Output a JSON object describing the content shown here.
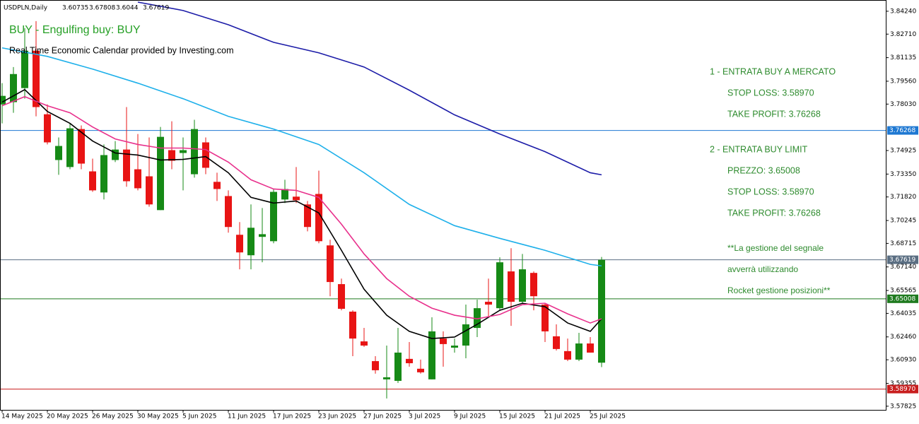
{
  "chart_data": {
    "type": "candlestick",
    "symbol": "USDPLN,Daily",
    "signal": "BUY - Engulfing buy: BUY",
    "credit": "Real Time Economic Calendar provided by Investing.com",
    "notes": [
      "1 - ENTRATA BUY A MERCATO",
      "STOP LOSS: 3.58970",
      "TAKE PROFIT: 3.76268",
      "2 - ENTRATA BUY LIMIT",
      "PREZZO: 3.65008",
      "STOP LOSS: 3.58970",
      "TAKE PROFIT: 3.76268",
      "**La gestione del segnale",
      "avverrà utilizzando",
      "Rocket gestione posizioni**"
    ],
    "categories": [
      "14 May 2025",
      null,
      null,
      null,
      "20 May 2025",
      null,
      null,
      null,
      "26 May 2025",
      null,
      null,
      null,
      "30 May 2025",
      null,
      null,
      null,
      "5 Jun 2025",
      null,
      null,
      null,
      "11 Jun 2025",
      null,
      null,
      null,
      "17 Jun 2025",
      null,
      null,
      null,
      "23 Jun 2025",
      null,
      null,
      null,
      "27 Jun 2025",
      null,
      null,
      null,
      "3 Jul 2025",
      null,
      null,
      null,
      "9 Jul 2025",
      null,
      null,
      null,
      "15 Jul 2025",
      null,
      null,
      null,
      "21 Jul 2025",
      null,
      null,
      null,
      "25 Jul 2025",
      null
    ],
    "open": [
      3.7801,
      3.7816,
      3.791,
      3.816,
      3.7735,
      3.7429,
      3.7382,
      3.7636,
      3.7353,
      3.7212,
      3.7429,
      3.7499,
      3.7367,
      3.732,
      3.7094,
      3.7495,
      3.7476,
      3.7334,
      3.7547,
      3.7283,
      3.7188,
      3.6929,
      3.6792,
      3.6915,
      3.6886,
      3.7165,
      3.7184,
      3.7132,
      3.7202,
      3.6858,
      3.6599,
      3.6415,
      3.6216,
      3.6084,
      3.5962,
      3.5952,
      3.6099,
      3.6033,
      3.5962,
      3.6235,
      3.6174,
      3.6188,
      3.6306,
      3.6481,
      3.6438,
      3.6684,
      3.6481,
      3.6674,
      3.6462,
      3.625,
      3.6151,
      3.6094,
      3.6202,
      3.60735
    ],
    "high": [
      3.7943,
      3.8051,
      3.8311,
      3.8358,
      3.7801,
      3.758,
      3.7674,
      3.766,
      3.7438,
      3.7533,
      3.7556,
      3.7783,
      3.7603,
      3.758,
      3.765,
      3.7688,
      3.758,
      3.7698,
      3.758,
      3.7344,
      3.7226,
      3.7014,
      3.7132,
      3.7108,
      3.7235,
      3.7297,
      3.7382,
      3.7155,
      3.7358,
      3.6896,
      3.6636,
      3.6424,
      3.6306,
      3.6117,
      3.6188,
      3.6306,
      3.6212,
      3.6094,
      3.6377,
      3.6283,
      3.6235,
      3.6462,
      3.6495,
      3.6636,
      3.6778,
      3.6839,
      3.6801,
      3.6684,
      3.6471,
      3.633,
      3.6235,
      3.6273,
      3.6245,
      3.67808
    ],
    "low": [
      3.7674,
      3.7745,
      3.7839,
      3.7721,
      3.7533,
      3.733,
      3.7367,
      3.7367,
      3.7216,
      3.7165,
      3.7415,
      3.725,
      3.7226,
      3.7117,
      3.7094,
      3.7367,
      3.7226,
      3.7311,
      3.7334,
      3.7155,
      3.6943,
      3.6698,
      3.6698,
      3.6745,
      3.6872,
      3.7141,
      3.7141,
      3.6952,
      3.6872,
      3.6518,
      3.6424,
      3.6117,
      3.6179,
      3.6,
      3.5834,
      3.5938,
      3.6047,
      3.6,
      3.5962,
      3.6047,
      3.6141,
      3.6103,
      3.6245,
      3.6377,
      3.6424,
      3.632,
      3.6471,
      3.6424,
      3.6212,
      3.6155,
      3.6084,
      3.6084,
      3.6141,
      3.6044
    ],
    "close": [
      3.7858,
      3.8004,
      3.816,
      3.7783,
      3.7547,
      3.7523,
      3.7641,
      3.7405,
      3.7226,
      3.7462,
      3.7499,
      3.7287,
      3.724,
      3.7132,
      3.7584,
      3.7424,
      3.7495,
      3.7636,
      3.7377,
      3.7235,
      3.6981,
      3.6811,
      3.6976,
      3.6933,
      3.7216,
      3.7235,
      3.716,
      3.6981,
      3.6886,
      3.6613,
      3.6434,
      3.6235,
      3.6188,
      3.6023,
      3.5976,
      3.6141,
      3.607,
      3.6009,
      3.6283,
      3.6198,
      3.6188,
      3.633,
      3.6438,
      3.6462,
      3.6745,
      3.6481,
      3.6698,
      3.6518,
      3.6283,
      3.6165,
      3.6094,
      3.6202,
      3.6141,
      3.67619
    ],
    "up_color": "#168a16",
    "down_color": "#e81414",
    "series": [
      {
        "color": "#000000",
        "x": [
          0,
          2,
          4,
          6,
          8,
          10,
          12,
          14,
          16,
          18,
          20,
          22,
          24,
          26,
          28,
          30,
          32,
          34,
          36,
          38,
          40,
          42,
          44,
          46,
          48,
          50,
          52,
          53
        ],
        "values": [
          3.7816,
          3.79,
          3.7754,
          3.7674,
          3.7556,
          3.7476,
          3.7462,
          3.7429,
          3.7433,
          3.7452,
          3.7344,
          3.7179,
          3.7141,
          3.7155,
          3.7075,
          3.6825,
          3.6565,
          3.6391,
          3.6283,
          3.6235,
          3.6245,
          3.633,
          3.6424,
          3.6471,
          3.6448,
          3.6339,
          3.6283,
          3.6367
        ]
      },
      {
        "color": "#e8308c",
        "x": [
          0,
          2,
          4,
          6,
          8,
          10,
          12,
          14,
          16,
          18,
          20,
          22,
          24,
          26,
          28,
          30,
          32,
          34,
          36,
          38,
          40,
          42,
          44,
          46,
          48,
          50,
          52,
          53
        ],
        "values": [
          3.7792,
          3.7853,
          3.7792,
          3.7745,
          3.765,
          3.757,
          3.7533,
          3.7509,
          3.7509,
          3.7499,
          3.7415,
          3.7297,
          3.7235,
          3.7226,
          3.7179,
          3.7,
          3.6801,
          3.6636,
          3.6518,
          3.6438,
          3.6391,
          3.6367,
          3.6396,
          3.6462,
          3.6471,
          3.64,
          3.6339,
          3.6367
        ]
      },
      {
        "color": "#1eb0ea",
        "x": [
          0,
          4,
          8,
          12,
          16,
          20,
          24,
          28,
          32,
          36,
          40,
          44,
          48,
          52,
          53
        ],
        "values": [
          3.8179,
          3.8122,
          3.8037,
          3.7943,
          3.7839,
          3.7721,
          3.7636,
          3.7533,
          3.7344,
          3.7132,
          3.699,
          3.6905,
          3.6825,
          3.6731,
          3.6721
        ]
      },
      {
        "color": "#1c1ca8",
        "x": [
          12,
          16,
          20,
          24,
          28,
          32,
          36,
          40,
          44,
          48,
          52,
          53
        ],
        "values": [
          3.8485,
          3.8429,
          3.8334,
          3.8216,
          3.8146,
          3.8051,
          3.7896,
          3.7731,
          3.7603,
          3.7485,
          3.7344,
          3.733
        ]
      }
    ],
    "levels": [
      {
        "value": 3.76268,
        "label": "3.76268",
        "color": "#1e78d2"
      },
      {
        "value": 3.67619,
        "label": "3.67619",
        "color": "#5a6e82"
      },
      {
        "value": 3.65008,
        "label": "3.65008",
        "color": "#1e7a1e"
      },
      {
        "value": 3.5897,
        "label": "3.58970",
        "color": "#c81e1e"
      }
    ],
    "ylim": [
      3.5758,
      3.8485
    ],
    "yticks": [
      {
        "value": 3.8424,
        "label": "3.84240"
      },
      {
        "value": 3.8271,
        "label": "3.82710"
      },
      3.81135,
      {
        "value": 3.7956,
        "label": "3.79560"
      },
      {
        "value": 3.7803,
        "label": "3.78030"
      },
      3.74925,
      {
        "value": 3.7335,
        "label": "3.73350"
      },
      {
        "value": 3.7182,
        "label": "3.71820"
      },
      3.70245,
      3.68715,
      {
        "value": 3.6714,
        "label": "3.67140"
      },
      3.65565,
      3.64035,
      {
        "value": 3.6246,
        "label": "3.62460"
      },
      {
        "value": 3.6093,
        "label": "3.60930"
      },
      3.59355,
      3.57825
    ]
  }
}
